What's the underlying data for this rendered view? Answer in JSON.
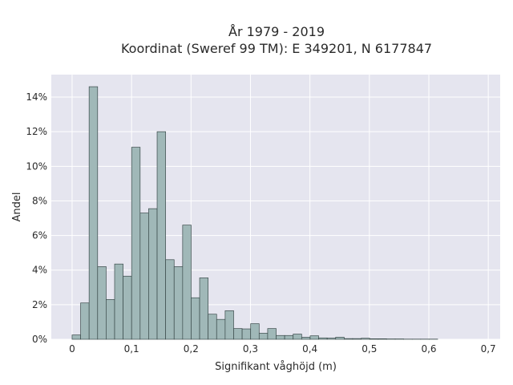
{
  "chart_data": {
    "type": "bar",
    "title_line1": "År 1979 - 2019",
    "title_line2": "Koordinat (Sweref 99 TM): E 349201, N 6177847",
    "xlabel": "Signifikant våghöjd (m)",
    "ylabel": "Andel",
    "xlim": [
      -0.035,
      0.72
    ],
    "ylim": [
      0,
      15.3
    ],
    "bin_width": 0.0143,
    "x_ticks": [
      {
        "value": 0,
        "label": "0"
      },
      {
        "value": 0.1,
        "label": "0,1"
      },
      {
        "value": 0.2,
        "label": "0,2"
      },
      {
        "value": 0.3,
        "label": "0,3"
      },
      {
        "value": 0.4,
        "label": "0,4"
      },
      {
        "value": 0.5,
        "label": "0,5"
      },
      {
        "value": 0.6,
        "label": "0,6"
      },
      {
        "value": 0.7,
        "label": "0,7"
      }
    ],
    "y_ticks": [
      {
        "value": 0,
        "label": "0%"
      },
      {
        "value": 2,
        "label": "2%"
      },
      {
        "value": 4,
        "label": "4%"
      },
      {
        "value": 6,
        "label": "6%"
      },
      {
        "value": 8,
        "label": "8%"
      },
      {
        "value": 10,
        "label": "10%"
      },
      {
        "value": 12,
        "label": "12%"
      },
      {
        "value": 14,
        "label": "14%"
      }
    ],
    "bin_starts": [
      0.0,
      0.0143,
      0.0286,
      0.0429,
      0.0572,
      0.0715,
      0.0858,
      0.1001,
      0.1144,
      0.1287,
      0.143,
      0.1573,
      0.1716,
      0.1859,
      0.2002,
      0.2145,
      0.2288,
      0.2431,
      0.2574,
      0.2717,
      0.286,
      0.3003,
      0.3146,
      0.3289,
      0.3432,
      0.3575,
      0.3718,
      0.3861,
      0.4004,
      0.4147,
      0.429,
      0.4433,
      0.4576,
      0.4719,
      0.4862,
      0.5005,
      0.5148,
      0.5291,
      0.5434,
      0.5577,
      0.572,
      0.5863,
      0.6006
    ],
    "values": [
      0.25,
      2.1,
      14.6,
      4.2,
      2.3,
      4.35,
      3.65,
      11.1,
      7.3,
      7.55,
      12.0,
      4.6,
      4.2,
      6.6,
      2.4,
      3.55,
      1.45,
      1.15,
      1.65,
      0.62,
      0.6,
      0.9,
      0.35,
      0.62,
      0.22,
      0.22,
      0.3,
      0.12,
      0.2,
      0.08,
      0.07,
      0.12,
      0.04,
      0.04,
      0.06,
      0.03,
      0.03,
      0.02,
      0.02,
      0.01,
      0.01,
      0.01,
      0.01
    ],
    "grid": true,
    "colors": {
      "bar_fill": "#a0b8b8",
      "bar_edge": "#3a4a4a",
      "plot_background": "#e5e5ef",
      "grid": "#ffffff"
    }
  }
}
